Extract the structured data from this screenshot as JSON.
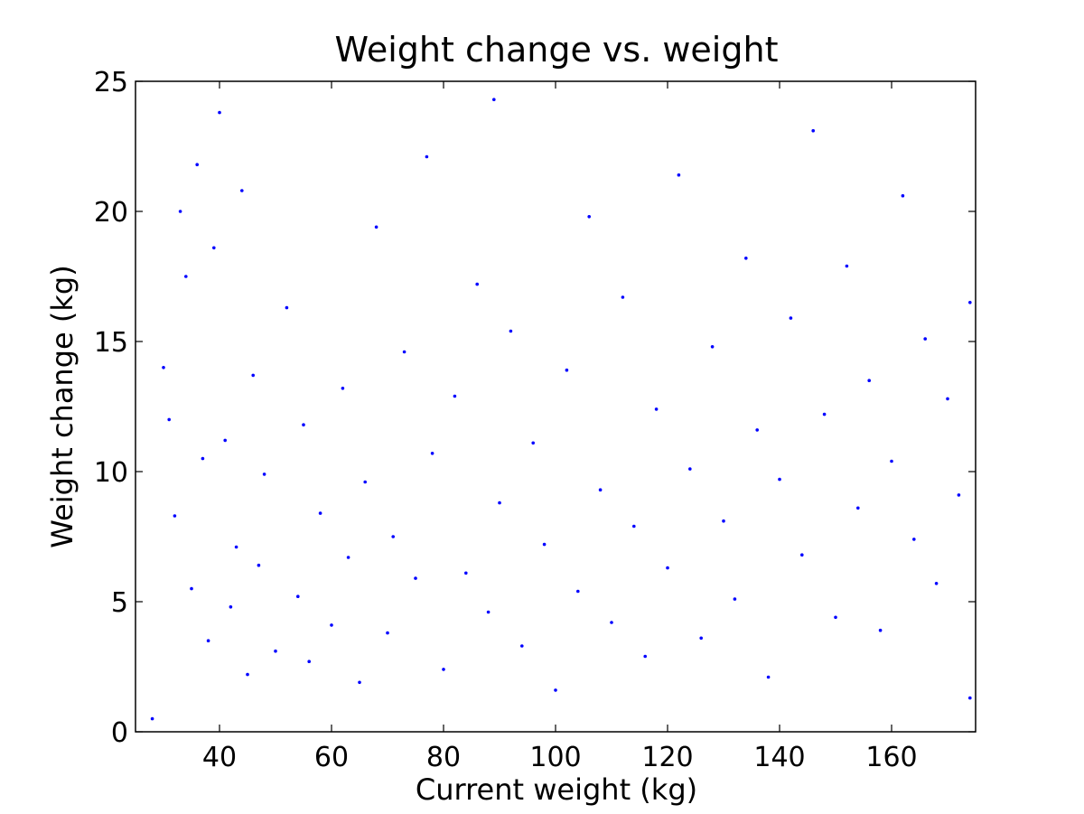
{
  "chart_data": {
    "type": "scatter",
    "title": "Weight change vs. weight",
    "xlabel": "Current weight (kg)",
    "ylabel": "Weight change (kg)",
    "xlim": [
      25,
      175
    ],
    "ylim": [
      0,
      25
    ],
    "xticks": [
      40,
      60,
      80,
      100,
      120,
      140,
      160
    ],
    "yticks": [
      0,
      5,
      10,
      15,
      20,
      25
    ],
    "grid": false,
    "marker_color": "#0000ff",
    "series": [
      {
        "points": [
          [
            28,
            0.5
          ],
          [
            30,
            14
          ],
          [
            31,
            12
          ],
          [
            32,
            8.3
          ],
          [
            33,
            20
          ],
          [
            34,
            17.5
          ],
          [
            35,
            5.5
          ],
          [
            36,
            21.8
          ],
          [
            37,
            10.5
          ],
          [
            38,
            3.5
          ],
          [
            39,
            18.6
          ],
          [
            40,
            23.8
          ],
          [
            41,
            11.2
          ],
          [
            42,
            4.8
          ],
          [
            43,
            7.1
          ],
          [
            44,
            20.8
          ],
          [
            45,
            2.2
          ],
          [
            46,
            13.7
          ],
          [
            47,
            6.4
          ],
          [
            48,
            9.9
          ],
          [
            50,
            3.1
          ],
          [
            52,
            16.3
          ],
          [
            54,
            5.2
          ],
          [
            55,
            11.8
          ],
          [
            56,
            2.7
          ],
          [
            58,
            8.4
          ],
          [
            60,
            4.1
          ],
          [
            62,
            13.2
          ],
          [
            63,
            6.7
          ],
          [
            65,
            1.9
          ],
          [
            66,
            9.6
          ],
          [
            68,
            19.4
          ],
          [
            70,
            3.8
          ],
          [
            71,
            7.5
          ],
          [
            73,
            14.6
          ],
          [
            75,
            5.9
          ],
          [
            77,
            22.1
          ],
          [
            78,
            10.7
          ],
          [
            80,
            2.4
          ],
          [
            82,
            12.9
          ],
          [
            84,
            6.1
          ],
          [
            86,
            17.2
          ],
          [
            88,
            4.6
          ],
          [
            89,
            24.3
          ],
          [
            90,
            8.8
          ],
          [
            92,
            15.4
          ],
          [
            94,
            3.3
          ],
          [
            96,
            11.1
          ],
          [
            98,
            7.2
          ],
          [
            100,
            1.6
          ],
          [
            102,
            13.9
          ],
          [
            104,
            5.4
          ],
          [
            106,
            19.8
          ],
          [
            108,
            9.3
          ],
          [
            110,
            4.2
          ],
          [
            112,
            16.7
          ],
          [
            114,
            7.9
          ],
          [
            116,
            2.9
          ],
          [
            118,
            12.4
          ],
          [
            120,
            6.3
          ],
          [
            122,
            21.4
          ],
          [
            124,
            10.1
          ],
          [
            126,
            3.6
          ],
          [
            128,
            14.8
          ],
          [
            130,
            8.1
          ],
          [
            132,
            5.1
          ],
          [
            134,
            18.2
          ],
          [
            136,
            11.6
          ],
          [
            138,
            2.1
          ],
          [
            140,
            9.7
          ],
          [
            142,
            15.9
          ],
          [
            144,
            6.8
          ],
          [
            146,
            23.1
          ],
          [
            148,
            12.2
          ],
          [
            150,
            4.4
          ],
          [
            152,
            17.9
          ],
          [
            154,
            8.6
          ],
          [
            156,
            13.5
          ],
          [
            158,
            3.9
          ],
          [
            160,
            10.4
          ],
          [
            162,
            20.6
          ],
          [
            164,
            7.4
          ],
          [
            166,
            15.1
          ],
          [
            168,
            5.7
          ],
          [
            170,
            12.8
          ],
          [
            172,
            9.1
          ],
          [
            174,
            1.3
          ],
          [
            174,
            16.5
          ]
        ]
      }
    ]
  }
}
